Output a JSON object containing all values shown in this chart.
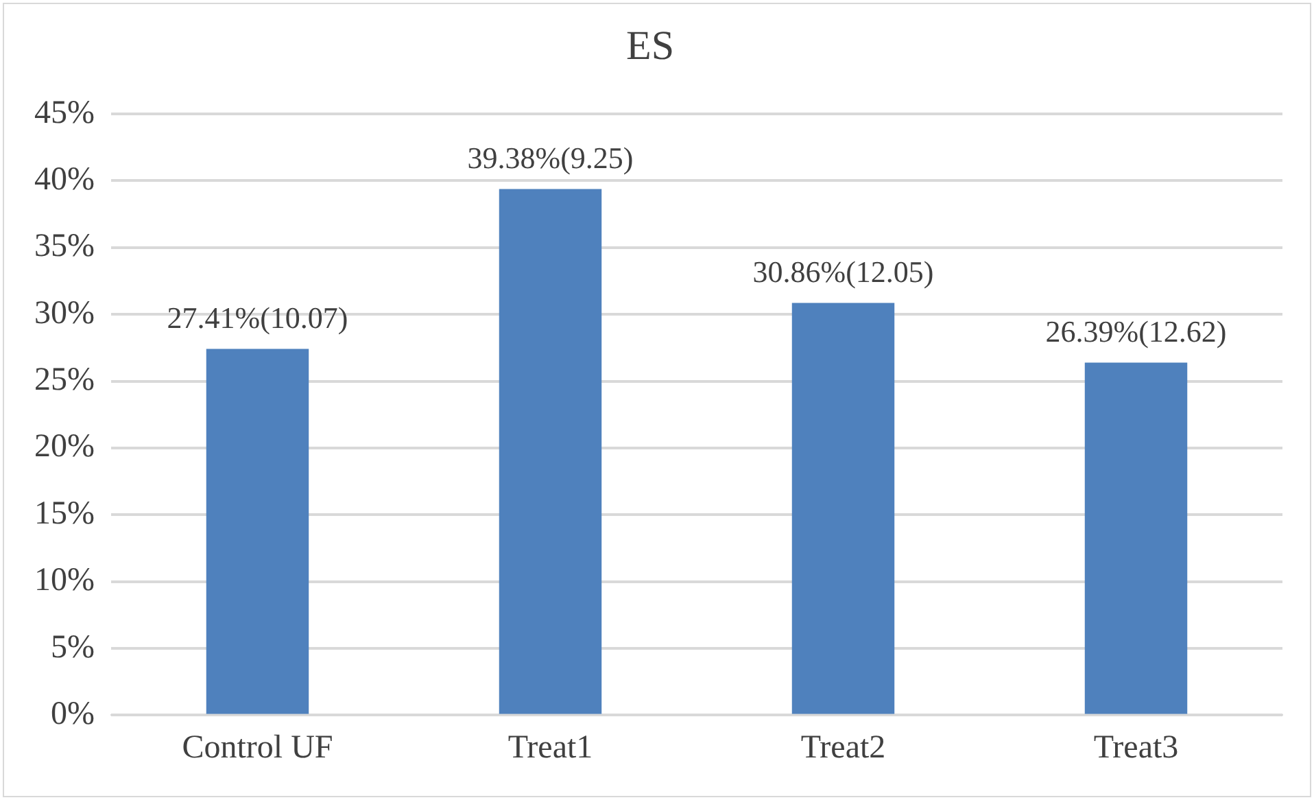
{
  "chart_data": {
    "type": "bar",
    "title": "ES",
    "categories": [
      "Control UF",
      "Treat1",
      "Treat2",
      "Treat3"
    ],
    "values": [
      27.41,
      39.38,
      30.86,
      26.39
    ],
    "value_labels": [
      "27.41%(10.07)",
      "39.38%(9.25)",
      "30.86%(12.05)",
      "26.39%(12.62)"
    ],
    "color": "#4f81bd",
    "ylim": [
      0,
      45
    ],
    "yticks": [
      {
        "value": 0,
        "label": "0%"
      },
      {
        "value": 5,
        "label": "5%"
      },
      {
        "value": 10,
        "label": "10%"
      },
      {
        "value": 15,
        "label": "15%"
      },
      {
        "value": 20,
        "label": "20%"
      },
      {
        "value": 25,
        "label": "25%"
      },
      {
        "value": 30,
        "label": "30%"
      },
      {
        "value": 35,
        "label": "35%"
      },
      {
        "value": 40,
        "label": "40%"
      },
      {
        "value": 45,
        "label": "45%"
      }
    ],
    "grid": "y",
    "legend": false
  }
}
